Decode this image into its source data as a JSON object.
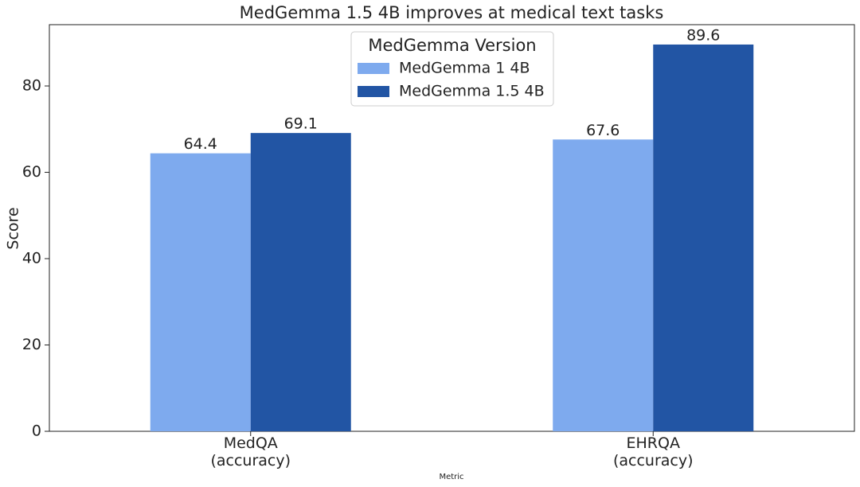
{
  "chart_data": {
    "type": "bar",
    "title": "MedGemma 1.5 4B improves at medical text tasks",
    "x_label": "Metric",
    "y_label": "Score",
    "categories": [
      "MedQA\n(accuracy)",
      "EHRQA\n(accuracy)"
    ],
    "series": [
      {
        "name": "MedGemma 1 4B",
        "color": "#7eaaee",
        "values": [
          64.4,
          67.6
        ]
      },
      {
        "name": "MedGemma 1.5 4B",
        "color": "#2255a4",
        "values": [
          69.1,
          89.6
        ]
      }
    ],
    "legend_title": "MedGemma Version",
    "legend": "upper center",
    "ylim": [
      0,
      94.2
    ],
    "yticks": [
      0,
      20,
      40,
      60,
      80
    ],
    "grid": false
  }
}
